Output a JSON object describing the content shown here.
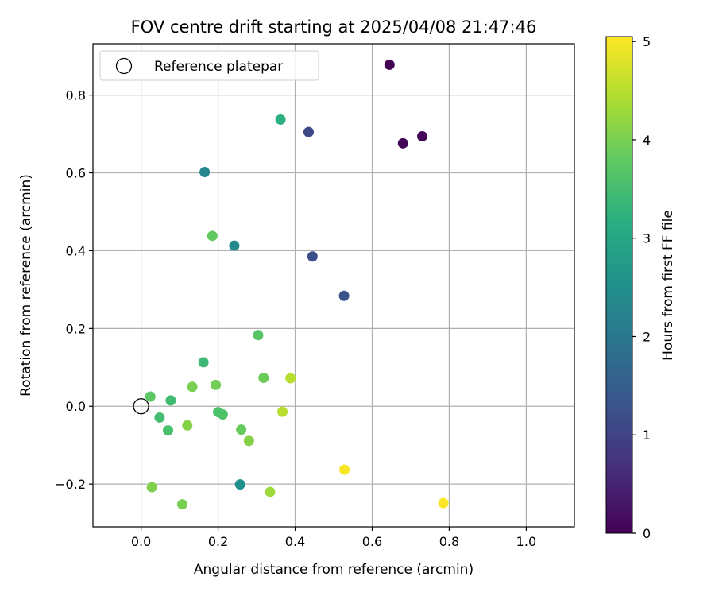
{
  "chart_data": {
    "type": "scatter",
    "title": "FOV centre drift starting at 2025/04/08 21:47:46",
    "xlabel": "Angular distance from reference (arcmin)",
    "ylabel": "Rotation from reference (arcmin)",
    "xlim": [
      -0.125,
      1.125
    ],
    "ylim": [
      -0.31,
      0.932
    ],
    "x_ticks": [
      0.0,
      0.2,
      0.4,
      0.6,
      0.8,
      1.0
    ],
    "x_tick_labels": [
      "0.0",
      "0.2",
      "0.4",
      "0.6",
      "0.8",
      "1.0"
    ],
    "y_ticks": [
      -0.2,
      0.0,
      0.2,
      0.4,
      0.6,
      0.8
    ],
    "y_tick_labels": [
      "−0.2",
      "0.0",
      "0.2",
      "0.4",
      "0.6",
      "0.8"
    ],
    "grid": true,
    "colormap": "viridis",
    "legend": {
      "placement": "top-left",
      "label": "Reference platepar"
    },
    "reference_point": {
      "x": 0.0,
      "y": 0.0
    },
    "colorbar": {
      "label": "Hours from first FF file",
      "range": [
        0,
        5.05
      ],
      "ticks": [
        0,
        1,
        2,
        3,
        4,
        5
      ],
      "tick_labels": [
        "0",
        "1",
        "2",
        "3",
        "4",
        "5"
      ]
    },
    "points": [
      {
        "x": 0.645,
        "y": 0.878,
        "hours": 0.0
      },
      {
        "x": 0.68,
        "y": 0.676,
        "hours": 0.05
      },
      {
        "x": 0.73,
        "y": 0.694,
        "hours": 0.1
      },
      {
        "x": 0.435,
        "y": 0.705,
        "hours": 1.1
      },
      {
        "x": 0.445,
        "y": 0.385,
        "hours": 1.2
      },
      {
        "x": 0.527,
        "y": 0.284,
        "hours": 1.3
      },
      {
        "x": 0.165,
        "y": 0.602,
        "hours": 2.3
      },
      {
        "x": 0.242,
        "y": 0.413,
        "hours": 2.4
      },
      {
        "x": 0.257,
        "y": -0.201,
        "hours": 2.5
      },
      {
        "x": 0.362,
        "y": 0.737,
        "hours": 3.2
      },
      {
        "x": 0.162,
        "y": 0.113,
        "hours": 3.4
      },
      {
        "x": 0.077,
        "y": 0.015,
        "hours": 3.45
      },
      {
        "x": 0.048,
        "y": -0.029,
        "hours": 3.5
      },
      {
        "x": 0.07,
        "y": -0.062,
        "hours": 3.55
      },
      {
        "x": 0.2,
        "y": -0.015,
        "hours": 3.6
      },
      {
        "x": 0.212,
        "y": -0.021,
        "hours": 3.6
      },
      {
        "x": 0.304,
        "y": 0.183,
        "hours": 3.7
      },
      {
        "x": 0.024,
        "y": 0.025,
        "hours": 3.75
      },
      {
        "x": 0.185,
        "y": 0.438,
        "hours": 3.8
      },
      {
        "x": 0.26,
        "y": -0.06,
        "hours": 3.85
      },
      {
        "x": 0.318,
        "y": 0.073,
        "hours": 3.9
      },
      {
        "x": 0.194,
        "y": 0.055,
        "hours": 3.95
      },
      {
        "x": 0.133,
        "y": 0.05,
        "hours": 4.0
      },
      {
        "x": 0.107,
        "y": -0.252,
        "hours": 4.0
      },
      {
        "x": 0.028,
        "y": -0.208,
        "hours": 4.05
      },
      {
        "x": 0.28,
        "y": -0.089,
        "hours": 4.1
      },
      {
        "x": 0.12,
        "y": -0.049,
        "hours": 4.1
      },
      {
        "x": 0.335,
        "y": -0.22,
        "hours": 4.3
      },
      {
        "x": 0.367,
        "y": -0.014,
        "hours": 4.5
      },
      {
        "x": 0.388,
        "y": 0.072,
        "hours": 4.5
      },
      {
        "x": 0.528,
        "y": -0.163,
        "hours": 5.0
      },
      {
        "x": 0.785,
        "y": -0.249,
        "hours": 5.02
      }
    ]
  }
}
